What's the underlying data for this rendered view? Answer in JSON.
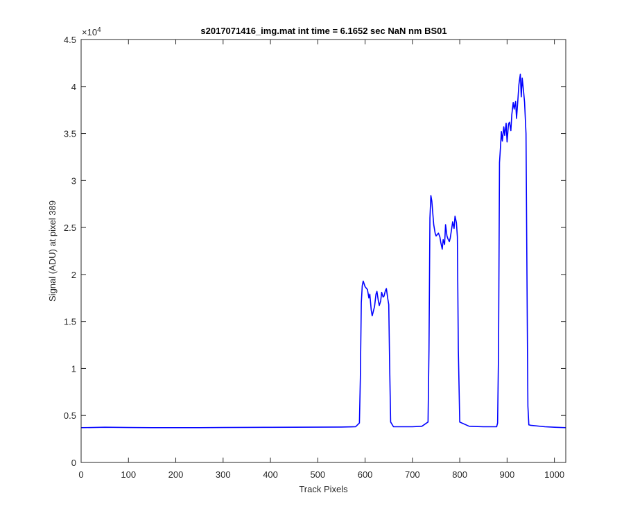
{
  "chart_data": {
    "type": "line",
    "title": "s2017071416_img.mat int time = 6.1652 sec  NaN nm BS01",
    "xlabel": "Track Pixels",
    "ylabel": "Signal (ADU) at pixel 389",
    "xlim": [
      0,
      1024
    ],
    "ylim": [
      0,
      45000
    ],
    "xticks": [
      0,
      100,
      200,
      300,
      400,
      500,
      600,
      700,
      800,
      900,
      1000
    ],
    "yticks": [
      0,
      5000,
      10000,
      15000,
      20000,
      25000,
      30000,
      35000,
      40000,
      45000
    ],
    "ytick_labels": [
      "0",
      "0.5",
      "1",
      "1.5",
      "2",
      "2.5",
      "3",
      "3.5",
      "4",
      "4.5"
    ],
    "y_exponent_base": "×10",
    "y_exponent_power": "4",
    "grid": false,
    "line_color": "#0000ff",
    "series": [
      {
        "x": [
          0,
          50,
          100,
          150,
          200,
          250,
          300,
          350,
          400,
          450,
          500,
          550,
          580,
          588,
          590,
          592,
          594,
          596,
          598,
          600,
          605,
          608,
          610,
          613,
          615,
          618,
          620,
          623,
          625,
          628,
          630,
          633,
          635,
          638,
          640,
          643,
          645,
          648,
          650,
          652,
          654,
          660,
          680,
          700,
          720,
          733,
          735,
          737,
          739,
          741,
          745,
          748,
          750,
          755,
          758,
          760,
          763,
          765,
          768,
          770,
          773,
          775,
          778,
          780,
          783,
          785,
          788,
          790,
          793,
          795,
          797,
          800,
          820,
          850,
          870,
          878,
          880,
          882,
          884,
          886,
          888,
          890,
          893,
          895,
          898,
          900,
          903,
          905,
          908,
          910,
          913,
          915,
          918,
          920,
          923,
          925,
          928,
          930,
          932,
          935,
          937,
          940,
          942,
          944,
          946,
          950,
          980,
          1000,
          1024
        ],
        "y": [
          3700,
          3750,
          3720,
          3700,
          3700,
          3700,
          3720,
          3730,
          3740,
          3750,
          3760,
          3770,
          3800,
          4200,
          9000,
          17000,
          18800,
          19300,
          19000,
          18700,
          18400,
          17500,
          17900,
          16200,
          15600,
          16200,
          16600,
          17900,
          18200,
          17200,
          16700,
          17200,
          18100,
          17600,
          17700,
          18300,
          18500,
          17400,
          16800,
          10000,
          4300,
          3800,
          3800,
          3800,
          3850,
          4300,
          12000,
          26000,
          28400,
          27800,
          25300,
          24400,
          24100,
          24400,
          24000,
          23400,
          22700,
          23700,
          23200,
          25300,
          24100,
          23800,
          23500,
          23900,
          24900,
          25600,
          24900,
          26200,
          25500,
          24000,
          12000,
          4300,
          3850,
          3800,
          3800,
          3800,
          4200,
          12000,
          31900,
          33500,
          35200,
          34200,
          35700,
          34800,
          36100,
          34100,
          36000,
          36200,
          35300,
          37000,
          38300,
          37600,
          38400,
          36600,
          38700,
          40200,
          41300,
          38900,
          40900,
          39400,
          38300,
          35000,
          20000,
          6000,
          4000,
          3950,
          3800,
          3750,
          3700
        ]
      }
    ]
  }
}
